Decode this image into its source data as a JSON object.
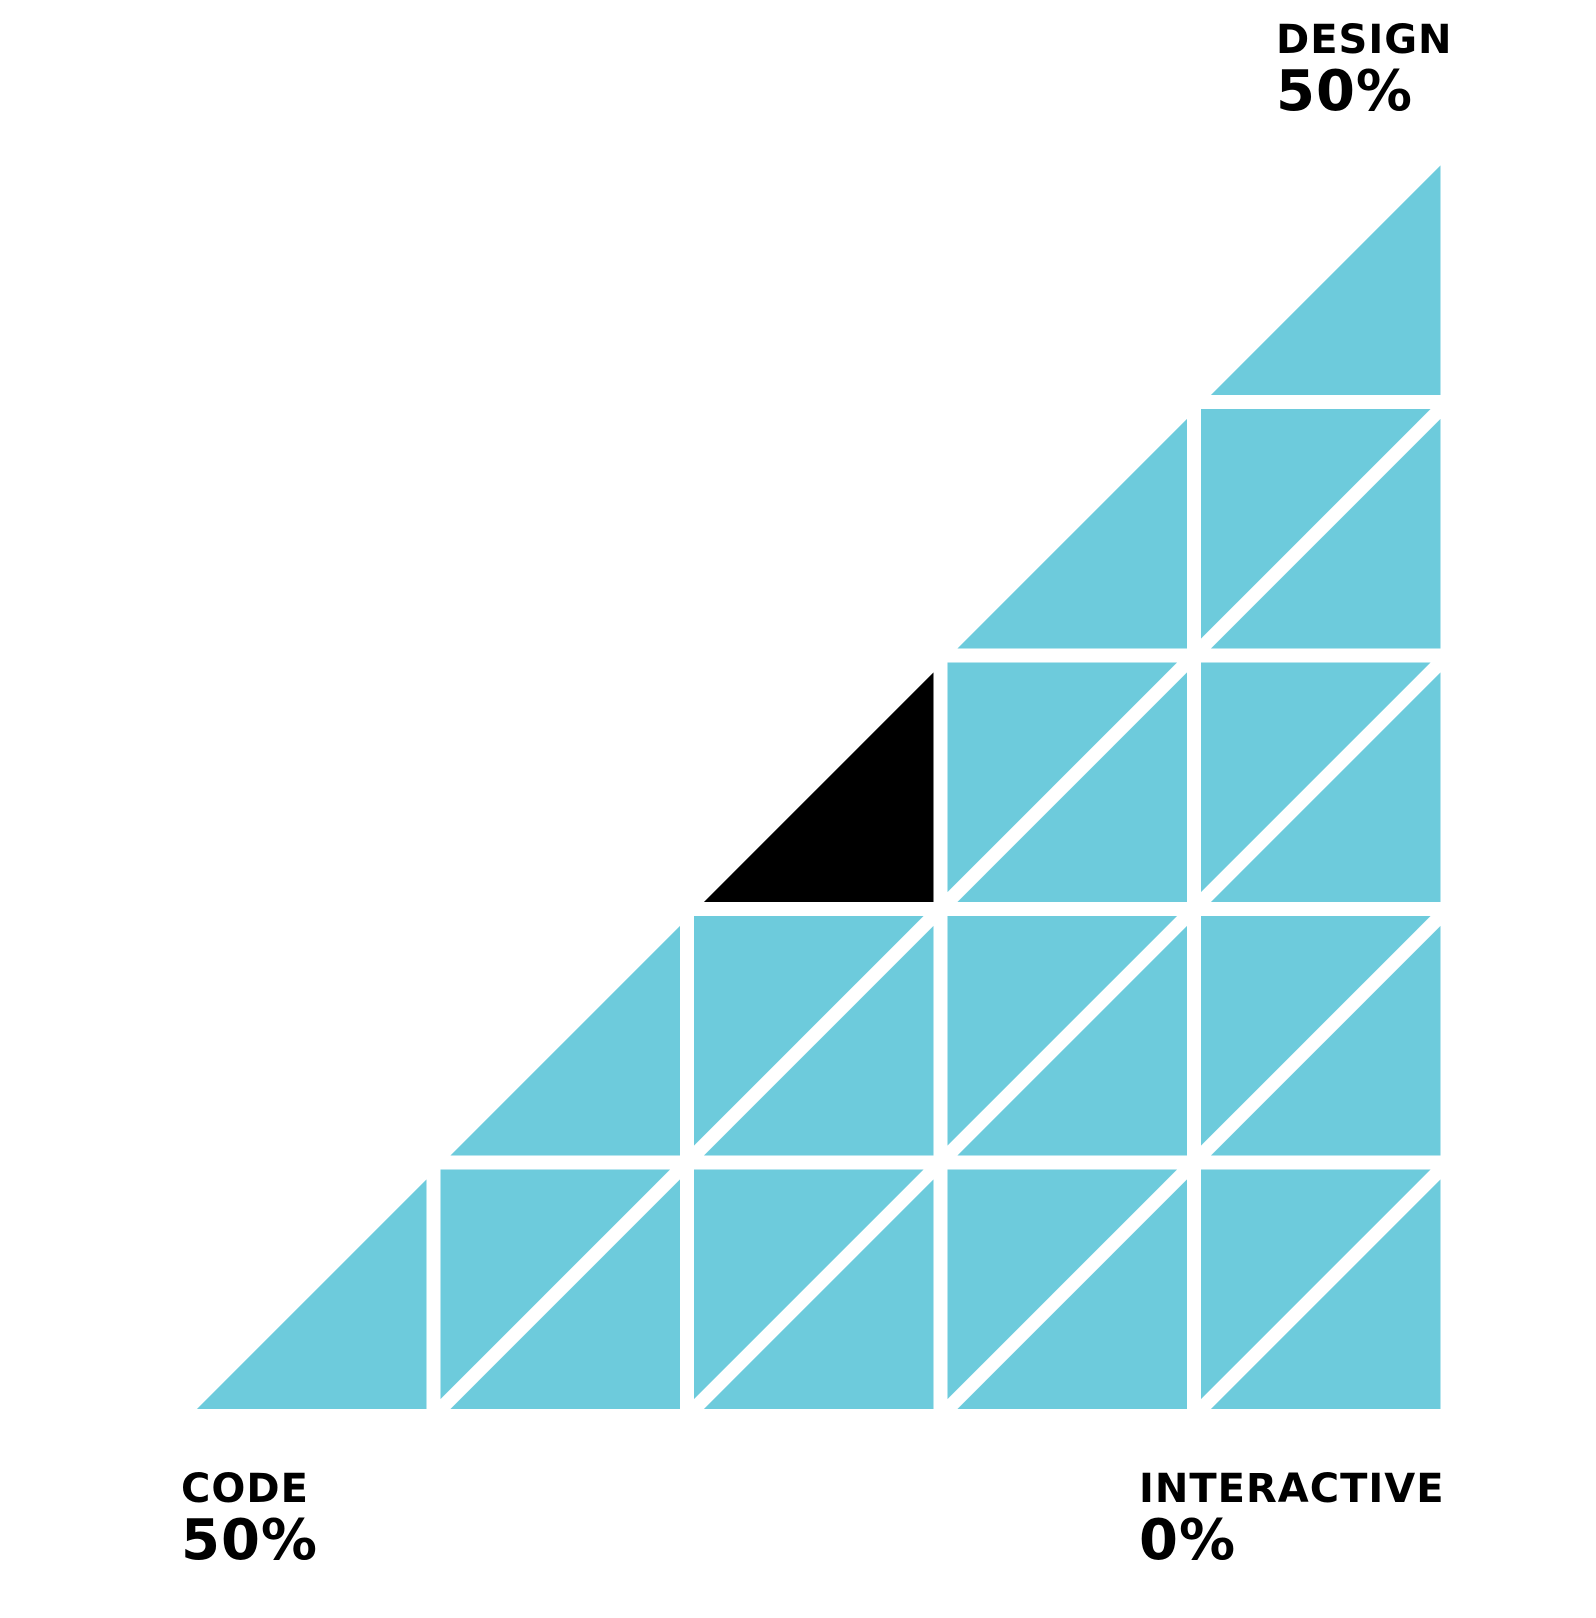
{
  "chart_data": {
    "type": "ternary-triangle-grid",
    "grid_divisions": 5,
    "corners": [
      {
        "id": "design",
        "label": "DESIGN",
        "value": "50%"
      },
      {
        "id": "code",
        "label": "CODE",
        "value": "50%"
      },
      {
        "id": "interactive",
        "label": "INTERACTIVE",
        "value": "0%"
      }
    ],
    "composition": {
      "design": 50,
      "code": 50,
      "interactive": 0
    },
    "highlighted_cell": {
      "row": 2,
      "col": 2,
      "orientation": "lower"
    },
    "colors": {
      "fill": "#6dcbdc",
      "highlight": "#000000",
      "gap": "#ffffff",
      "text": "#000000"
    }
  }
}
